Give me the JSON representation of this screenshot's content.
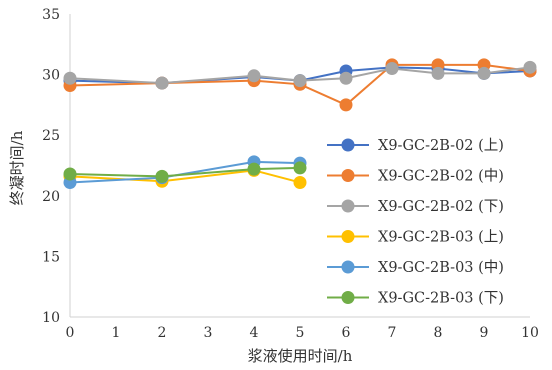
{
  "chart_data": {
    "type": "line",
    "xlabel": "浆液使用时间/h",
    "ylabel": "终凝时间/h",
    "xlim": [
      0,
      10
    ],
    "ylim": [
      10,
      35
    ],
    "xticks": [
      0,
      1,
      2,
      3,
      4,
      5,
      6,
      7,
      8,
      9,
      10
    ],
    "yticks": [
      10,
      15,
      20,
      25,
      30,
      35
    ],
    "grid": false,
    "legend_position": "right",
    "series": [
      {
        "name": "X9-GC-2B-02 (上)",
        "color": "#4472C4",
        "x": [
          0,
          2,
          4,
          5,
          6,
          7,
          8,
          9,
          10
        ],
        "y": [
          29.5,
          29.3,
          29.8,
          29.5,
          30.3,
          30.6,
          30.5,
          30.1,
          30.3
        ]
      },
      {
        "name": "X9-GC-2B-02 (中)",
        "color": "#ED7D31",
        "x": [
          0,
          2,
          4,
          5,
          6,
          7,
          8,
          9,
          10
        ],
        "y": [
          29.1,
          29.3,
          29.5,
          29.2,
          27.5,
          30.8,
          30.8,
          30.8,
          30.3
        ]
      },
      {
        "name": "X9-GC-2B-02 (下)",
        "color": "#A5A5A5",
        "x": [
          0,
          2,
          4,
          5,
          6,
          7,
          8,
          9,
          10
        ],
        "y": [
          29.7,
          29.3,
          29.9,
          29.5,
          29.7,
          30.5,
          30.1,
          30.1,
          30.6
        ]
      },
      {
        "name": "X9-GC-2B-03 (上)",
        "color": "#FFC000",
        "x": [
          0,
          2,
          4,
          5
        ],
        "y": [
          21.6,
          21.2,
          22.1,
          21.1
        ]
      },
      {
        "name": "X9-GC-2B-03 (中)",
        "color": "#5B9BD5",
        "x": [
          0,
          2,
          4,
          5
        ],
        "y": [
          21.1,
          21.5,
          22.8,
          22.7
        ]
      },
      {
        "name": "X9-GC-2B-03 (下)",
        "color": "#70AD47",
        "x": [
          0,
          2,
          4,
          5
        ],
        "y": [
          21.8,
          21.6,
          22.2,
          22.3
        ]
      }
    ]
  }
}
